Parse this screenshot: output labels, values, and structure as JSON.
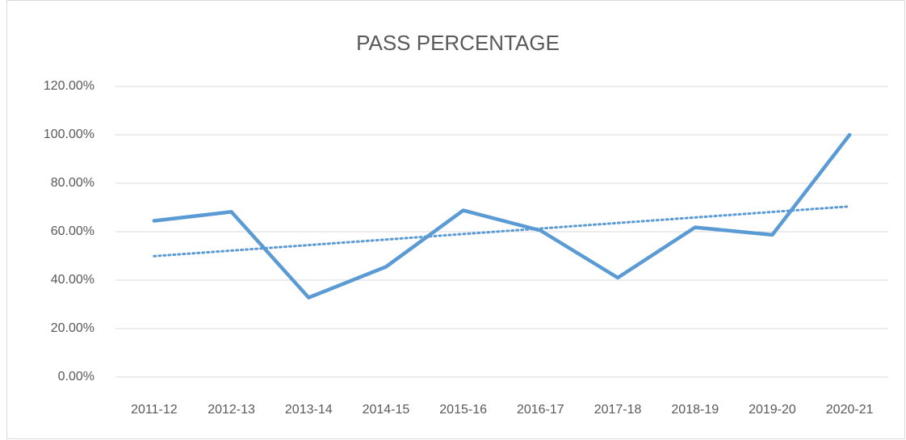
{
  "chart_data": {
    "type": "line",
    "title": "PASS PERCENTAGE",
    "categories": [
      "2011-12",
      "2012-13",
      "2013-14",
      "2014-15",
      "2015-16",
      "2016-17",
      "2017-18",
      "2018-19",
      "2019-20",
      "2020-21"
    ],
    "series": [
      {
        "name": "Pass Percentage",
        "color": "#5b9bd5",
        "values": [
          64.5,
          68.2,
          32.8,
          45.5,
          68.8,
          60.5,
          41,
          61.8,
          58.7,
          100
        ]
      }
    ],
    "trendline": "linear",
    "ylim": [
      0,
      120
    ],
    "yticks": [
      {
        "value": 0,
        "label": "0.00%"
      },
      {
        "value": 20,
        "label": "20.00%"
      },
      {
        "value": 40,
        "label": "40.00%"
      },
      {
        "value": 60,
        "label": "60.00%"
      },
      {
        "value": 80,
        "label": "80.00%"
      },
      {
        "value": 100,
        "label": "100.00%"
      },
      {
        "value": 120,
        "label": "120.00%"
      }
    ],
    "grid": true
  }
}
